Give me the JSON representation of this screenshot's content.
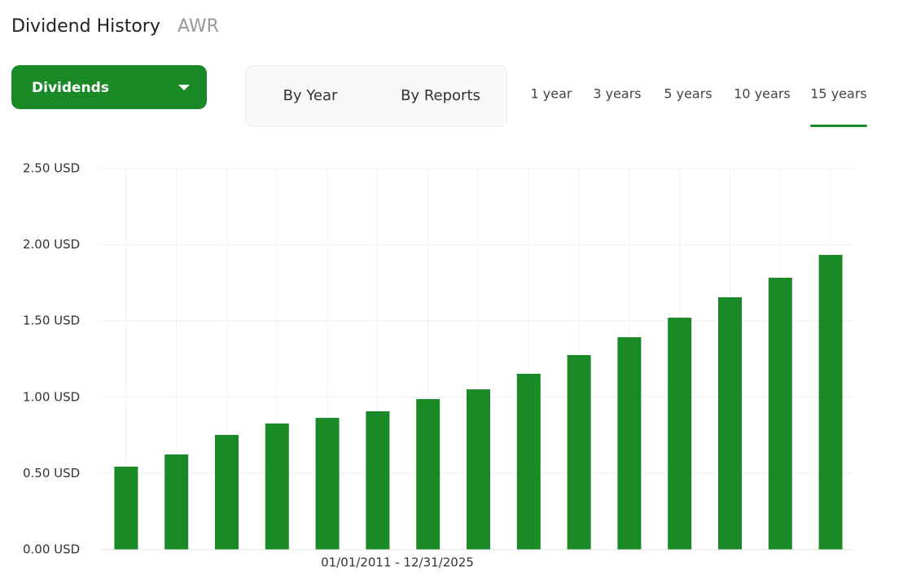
{
  "header": {
    "title": "Dividend History",
    "ticker": "AWR"
  },
  "dropdown": {
    "label": "Dividends"
  },
  "views": [
    "By Year",
    "By Reports"
  ],
  "periods": [
    "1 year",
    "3 years",
    "5 years",
    "10 years",
    "15 years"
  ],
  "active_period": 4,
  "chart_data": {
    "type": "bar",
    "x_label": "01/01/2011 - 12/31/2025",
    "values": [
      0.545,
      0.625,
      0.753,
      0.828,
      0.865,
      0.908,
      0.988,
      1.052,
      1.154,
      1.277,
      1.394,
      1.522,
      1.656,
      1.784,
      1.934
    ],
    "color": "#1a8a27",
    "ylim": [
      0,
      2.5
    ],
    "yticks": [
      {
        "value": 0,
        "label": "0.00 USD"
      },
      {
        "value": 0.5,
        "label": "0.50 USD"
      },
      {
        "value": 1,
        "label": "1.00 USD"
      },
      {
        "value": 1.5,
        "label": "1.50 USD"
      },
      {
        "value": 2,
        "label": "2.00 USD"
      },
      {
        "value": 2.5,
        "label": "2.50 USD"
      }
    ],
    "grid": true
  }
}
